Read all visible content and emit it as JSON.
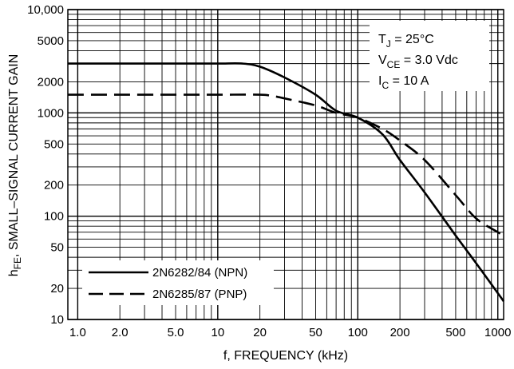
{
  "chart_data": {
    "type": "line",
    "x_scale": "log",
    "y_scale": "log",
    "xlim": [
      0.85,
      1100
    ],
    "ylim": [
      10,
      10000
    ],
    "xlabel": "f, FREQUENCY (kHz)",
    "ylabel": "h_FE, SMALL–SIGNAL CURRENT GAIN",
    "ylabel_parts": {
      "main": "h",
      "sub": "FE",
      "rest": ", SMALL–SIGNAL CURRENT GAIN"
    },
    "x_ticks": [
      {
        "value": 1,
        "label": "1.0"
      },
      {
        "value": 2,
        "label": "2.0"
      },
      {
        "value": 5,
        "label": "5.0"
      },
      {
        "value": 10,
        "label": "10"
      },
      {
        "value": 20,
        "label": "20"
      },
      {
        "value": 50,
        "label": "50"
      },
      {
        "value": 100,
        "label": "100"
      },
      {
        "value": 200,
        "label": "200"
      },
      {
        "value": 500,
        "label": "500"
      },
      {
        "value": 1000,
        "label": "1000"
      }
    ],
    "y_ticks": [
      {
        "value": 10,
        "label": "10"
      },
      {
        "value": 20,
        "label": "20"
      },
      {
        "value": 50,
        "label": "50"
      },
      {
        "value": 100,
        "label": "100"
      },
      {
        "value": 200,
        "label": "200"
      },
      {
        "value": 500,
        "label": "500"
      },
      {
        "value": 1000,
        "label": "1000"
      },
      {
        "value": 2000,
        "label": "2000"
      },
      {
        "value": 5000,
        "label": "5000"
      },
      {
        "value": 10000,
        "label": "10,000"
      }
    ],
    "grid": true,
    "annotations": [
      {
        "main": "T",
        "sub": "J",
        "rest": " = 25°C"
      },
      {
        "main": "V",
        "sub": "CE",
        "rest": " = 3.0 Vdc"
      },
      {
        "main": "I",
        "sub": "C",
        "rest": " = 10 A"
      }
    ],
    "legend_position": "bottom-left",
    "series": [
      {
        "name": "2N6282/84 (NPN)",
        "style": "solid",
        "x": [
          0.85,
          1,
          2,
          5,
          10,
          15,
          20,
          30,
          50,
          70,
          100,
          150,
          200,
          300,
          500,
          700,
          1000,
          1100
        ],
        "y": [
          3000,
          3000,
          3000,
          3000,
          3000,
          3000,
          2800,
          2200,
          1500,
          1050,
          900,
          620,
          350,
          170,
          65,
          35,
          18,
          15
        ]
      },
      {
        "name": "2N6285/87 (PNP)",
        "style": "dashed",
        "x": [
          0.85,
          1,
          2,
          5,
          10,
          20,
          25,
          30,
          50,
          70,
          100,
          150,
          200,
          300,
          500,
          700,
          1000,
          1100
        ],
        "y": [
          1500,
          1500,
          1500,
          1500,
          1500,
          1500,
          1450,
          1380,
          1180,
          1000,
          900,
          700,
          540,
          350,
          160,
          95,
          70,
          65
        ]
      }
    ]
  }
}
